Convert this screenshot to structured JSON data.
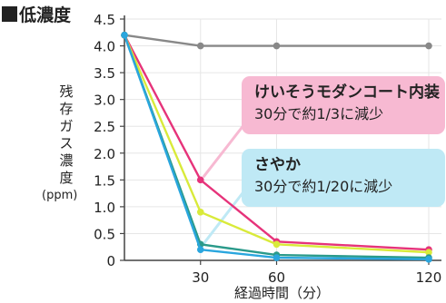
{
  "title": "低濃度",
  "chart_data": {
    "type": "line",
    "ylabel": "残存ガス濃度",
    "yunit": "(ppm)",
    "xlabel": "経過時間（分）",
    "ylim": [
      0,
      4.5
    ],
    "xlim": [
      0,
      120
    ],
    "yticks": [
      "0",
      "0.5",
      "1.0",
      "1.5",
      "2.0",
      "2.5",
      "3.0",
      "3.5",
      "4.0",
      "4.5"
    ],
    "xticks": [
      30,
      60,
      120
    ],
    "series": [
      {
        "color": "#888888",
        "x": [
          0,
          30,
          60,
          120
        ],
        "values": [
          4.2,
          4.0,
          4.0,
          4.0
        ]
      },
      {
        "color": "#e6337a",
        "x": [
          0,
          30,
          60,
          120
        ],
        "values": [
          4.2,
          1.5,
          0.35,
          0.2
        ]
      },
      {
        "color": "#d9ea3a",
        "x": [
          0,
          30,
          60,
          120
        ],
        "values": [
          4.2,
          0.9,
          0.3,
          0.15
        ]
      },
      {
        "color": "#2a9a8a",
        "x": [
          0,
          30,
          60,
          120
        ],
        "values": [
          4.2,
          0.3,
          0.1,
          0.05
        ]
      },
      {
        "color": "#2aa6de",
        "x": [
          0,
          30,
          60,
          120
        ],
        "values": [
          4.2,
          0.2,
          0.05,
          0.02
        ]
      }
    ],
    "annotations": [
      {
        "line1": "けいそうモダンコート内装",
        "line2": "30分で約1/3に減少",
        "color": "#f7b9d2"
      },
      {
        "line1": "さやか",
        "line2": "30分で約1/20に減少",
        "color": "#bfe9f5"
      }
    ]
  }
}
